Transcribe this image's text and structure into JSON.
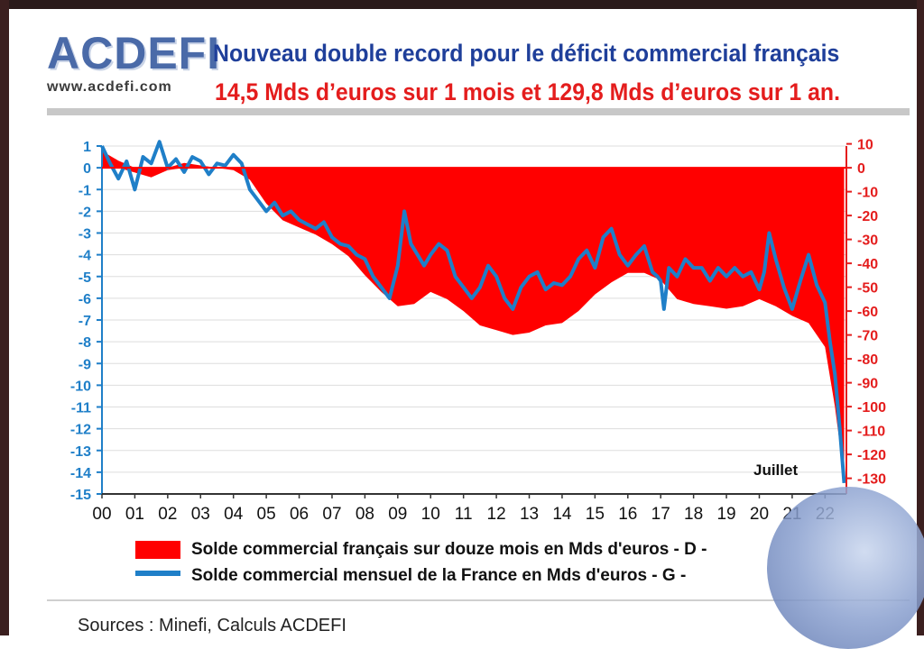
{
  "logo": {
    "name": "ACDEFI",
    "url": "www.acdefi.com"
  },
  "title": {
    "line1": "Nouveau double record pour le déficit commercial français",
    "line2": "14,5 Mds d’euros sur 1 mois et 129,8 Mds d’euros sur 1 an."
  },
  "colors": {
    "red_area": "#ff0000",
    "blue_line": "#1f7fc8",
    "left_axis": "#1f7fc8",
    "right_axis": "#e41d1d"
  },
  "chart_data": {
    "type": "area",
    "x_tick_labels": [
      "00",
      "01",
      "02",
      "03",
      "04",
      "05",
      "06",
      "07",
      "08",
      "09",
      "10",
      "11",
      "12",
      "13",
      "14",
      "15",
      "16",
      "17",
      "18",
      "19",
      "20",
      "21",
      "22"
    ],
    "left_axis": {
      "label_side": "left",
      "ylim": [
        -15,
        1
      ],
      "ticks": [
        "1",
        "0",
        "-1",
        "-2",
        "-3",
        "-4",
        "-5",
        "-6",
        "-7",
        "-8",
        "-9",
        "-10",
        "-11",
        "-12",
        "-13",
        "-14",
        "-15"
      ]
    },
    "right_axis": {
      "label_side": "right",
      "ylim": [
        -130,
        10
      ],
      "ticks": [
        "10",
        "0",
        "-10",
        "-20",
        "-30",
        "-40",
        "-50",
        "-60",
        "-70",
        "-80",
        "-90",
        "-100",
        "-110",
        "-120",
        "-130"
      ]
    },
    "annotation": "Juillet",
    "series": [
      {
        "name": "Solde commercial français sur douze mois en Mds d'euros - D -",
        "kind": "area",
        "axis": "right",
        "x": [
          2000.0,
          2000.5,
          2001.0,
          2001.5,
          2002.0,
          2002.5,
          2003.0,
          2003.5,
          2004.0,
          2004.5,
          2005.0,
          2005.5,
          2006.0,
          2006.5,
          2007.0,
          2007.5,
          2008.0,
          2008.5,
          2009.0,
          2009.5,
          2010.0,
          2010.5,
          2011.0,
          2011.5,
          2012.0,
          2012.5,
          2013.0,
          2013.5,
          2014.0,
          2014.5,
          2015.0,
          2015.5,
          2016.0,
          2016.5,
          2017.0,
          2017.5,
          2018.0,
          2018.5,
          2019.0,
          2019.5,
          2020.0,
          2020.5,
          2021.0,
          2021.5,
          2022.0,
          2022.3,
          2022.58
        ],
        "values": [
          7,
          3,
          -2,
          -4,
          -1,
          2,
          1,
          0,
          -1,
          -5,
          -15,
          -22,
          -25,
          -28,
          -32,
          -37,
          -45,
          -52,
          -58,
          -57,
          -52,
          -55,
          -60,
          -66,
          -68,
          -70,
          -69,
          -66,
          -65,
          -60,
          -53,
          -48,
          -44,
          -44,
          -47,
          -55,
          -57,
          -58,
          -59,
          -58,
          -55,
          -58,
          -62,
          -65,
          -75,
          -100,
          -129.8
        ]
      },
      {
        "name": "Solde commercial mensuel de la France en Mds d'euros - G -",
        "kind": "line",
        "axis": "left",
        "x": [
          2000.0,
          2000.25,
          2000.5,
          2000.75,
          2001.0,
          2001.25,
          2001.5,
          2001.75,
          2002.0,
          2002.25,
          2002.5,
          2002.75,
          2003.0,
          2003.25,
          2003.5,
          2003.75,
          2004.0,
          2004.25,
          2004.5,
          2004.75,
          2005.0,
          2005.25,
          2005.5,
          2005.75,
          2006.0,
          2006.25,
          2006.5,
          2006.75,
          2007.0,
          2007.25,
          2007.5,
          2007.75,
          2008.0,
          2008.25,
          2008.5,
          2008.75,
          2009.0,
          2009.2,
          2009.4,
          2009.6,
          2009.8,
          2010.0,
          2010.25,
          2010.5,
          2010.75,
          2011.0,
          2011.25,
          2011.5,
          2011.75,
          2012.0,
          2012.25,
          2012.5,
          2012.75,
          2013.0,
          2013.25,
          2013.5,
          2013.75,
          2014.0,
          2014.25,
          2014.5,
          2014.75,
          2015.0,
          2015.25,
          2015.5,
          2015.75,
          2016.0,
          2016.25,
          2016.5,
          2016.75,
          2016.9,
          2017.0,
          2017.1,
          2017.25,
          2017.5,
          2017.75,
          2018.0,
          2018.25,
          2018.5,
          2018.75,
          2019.0,
          2019.25,
          2019.5,
          2019.75,
          2020.0,
          2020.15,
          2020.3,
          2020.5,
          2020.75,
          2021.0,
          2021.25,
          2021.5,
          2021.75,
          2022.0,
          2022.15,
          2022.3,
          2022.45,
          2022.58
        ],
        "values": [
          1.0,
          0.2,
          -0.5,
          0.3,
          -1.0,
          0.5,
          0.2,
          1.2,
          0.0,
          0.4,
          -0.2,
          0.5,
          0.3,
          -0.3,
          0.2,
          0.1,
          0.6,
          0.2,
          -1.0,
          -1.5,
          -2.0,
          -1.6,
          -2.2,
          -2.0,
          -2.4,
          -2.6,
          -2.8,
          -2.5,
          -3.2,
          -3.5,
          -3.6,
          -4.0,
          -4.2,
          -5.0,
          -5.5,
          -6.0,
          -4.5,
          -2.0,
          -3.5,
          -4.0,
          -4.5,
          -4.0,
          -3.5,
          -3.8,
          -5.0,
          -5.5,
          -6.0,
          -5.5,
          -4.5,
          -5.0,
          -6.0,
          -6.5,
          -5.5,
          -5.0,
          -4.8,
          -5.6,
          -5.3,
          -5.4,
          -5.0,
          -4.2,
          -3.8,
          -4.6,
          -3.2,
          -2.8,
          -4.0,
          -4.5,
          -4.0,
          -3.6,
          -4.8,
          -5.0,
          -5.2,
          -6.5,
          -4.6,
          -5.0,
          -4.2,
          -4.6,
          -4.6,
          -5.2,
          -4.6,
          -5.0,
          -4.6,
          -5.0,
          -4.8,
          -5.6,
          -4.8,
          -3.0,
          -4.2,
          -5.5,
          -6.5,
          -5.2,
          -4.0,
          -5.4,
          -6.2,
          -8.0,
          -9.5,
          -12.0,
          -14.5
        ]
      }
    ]
  },
  "legend": {
    "red": "Solde commercial français sur douze mois en Mds d'euros - D -",
    "blue": "Solde commercial mensuel de la France en Mds d'euros - G -"
  },
  "footer": {
    "sources": "Sources : Minefi, Calculs ACDEFI"
  }
}
